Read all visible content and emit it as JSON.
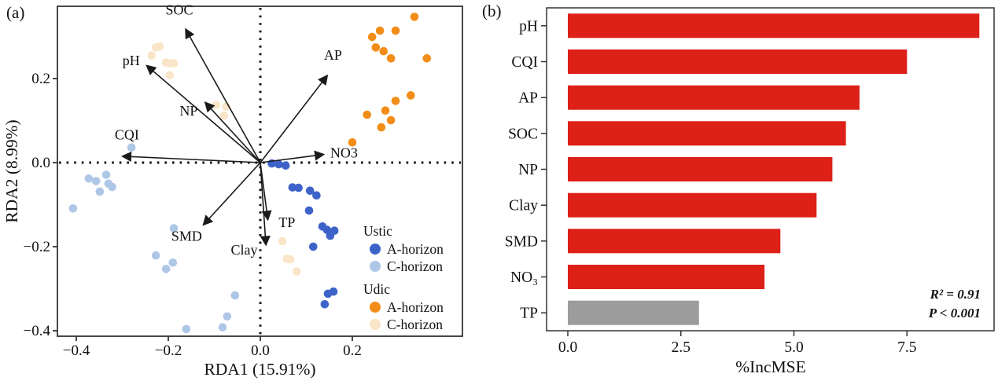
{
  "figure": {
    "panel_a_tag": "(a)",
    "panel_b_tag": "(b)"
  },
  "chart_data": [
    {
      "id": "rda-biplot",
      "type": "scatter",
      "xlabel": "RDA1 (15.91%)",
      "ylabel": "RDA2 (8.99%)",
      "xlim": [
        -0.44,
        0.44
      ],
      "ylim": [
        -0.42,
        0.38
      ],
      "xticks": {
        "values": [
          -0.4,
          -0.2,
          0.0,
          0.2
        ],
        "labels": [
          "−0.4",
          "−0.2",
          "0.0",
          "0.2"
        ]
      },
      "yticks": {
        "values": [
          0.2,
          0.0,
          -0.2,
          -0.4
        ],
        "labels": [
          "0.2",
          "0.0",
          "−0.2",
          "−0.4"
        ]
      },
      "zero_lines": "dotted",
      "arrow_color": "#1a1a1a",
      "arrows": [
        {
          "label": "SOC",
          "x": -0.161,
          "y": 0.315,
          "lx": -0.176,
          "ly": 0.352,
          "anchor": "middle"
        },
        {
          "label": "pH",
          "x": -0.245,
          "y": 0.229,
          "lx": -0.262,
          "ly": 0.232,
          "anchor": "end"
        },
        {
          "label": "NP",
          "x": -0.118,
          "y": 0.141,
          "lx": -0.136,
          "ly": 0.112,
          "anchor": "end"
        },
        {
          "label": "CQI",
          "x": -0.297,
          "y": 0.015,
          "lx": -0.29,
          "ly": 0.055,
          "anchor": "middle"
        },
        {
          "label": "NO3",
          "x": 0.135,
          "y": 0.019,
          "lx": 0.152,
          "ly": 0.012,
          "anchor": "start"
        },
        {
          "label": "AP",
          "x": 0.144,
          "y": 0.205,
          "lx": 0.158,
          "ly": 0.245,
          "anchor": "middle"
        },
        {
          "label": "SMD",
          "x": -0.122,
          "y": -0.146,
          "lx": -0.16,
          "ly": -0.186,
          "anchor": "middle"
        },
        {
          "label": "TP",
          "x": 0.016,
          "y": -0.133,
          "lx": 0.04,
          "ly": -0.153,
          "anchor": "start"
        },
        {
          "label": "Clay",
          "x": 0.012,
          "y": -0.193,
          "lx": -0.006,
          "ly": -0.219,
          "anchor": "end"
        }
      ],
      "series": [
        {
          "name": "Ustic A-horizon",
          "color": "#3D63C9",
          "points": [
            [
              0.025,
              -0.002
            ],
            [
              0.04,
              -0.004
            ],
            [
              0.055,
              -0.007
            ],
            [
              0.07,
              -0.059
            ],
            [
              0.083,
              -0.06
            ],
            [
              0.108,
              -0.067
            ],
            [
              0.122,
              -0.078
            ],
            [
              0.106,
              -0.114
            ],
            [
              0.135,
              -0.152
            ],
            [
              0.145,
              -0.16
            ],
            [
              0.161,
              -0.162
            ],
            [
              0.152,
              -0.174
            ],
            [
              0.115,
              -0.2
            ],
            [
              0.147,
              -0.312
            ],
            [
              0.159,
              -0.307
            ],
            [
              0.14,
              -0.337
            ]
          ]
        },
        {
          "name": "Ustic C-horizon",
          "color": "#AFC7E6",
          "points": [
            [
              -0.373,
              -0.038
            ],
            [
              -0.357,
              -0.044
            ],
            [
              -0.335,
              -0.029
            ],
            [
              -0.33,
              -0.05
            ],
            [
              -0.349,
              -0.069
            ],
            [
              -0.322,
              -0.058
            ],
            [
              -0.407,
              -0.109
            ],
            [
              -0.28,
              0.036
            ],
            [
              -0.188,
              -0.156
            ],
            [
              -0.227,
              -0.221
            ],
            [
              -0.205,
              -0.253
            ],
            [
              -0.19,
              -0.238
            ],
            [
              -0.055,
              -0.316
            ],
            [
              -0.072,
              -0.366
            ],
            [
              -0.082,
              -0.392
            ],
            [
              -0.161,
              -0.396
            ]
          ]
        },
        {
          "name": "Udic A-horizon",
          "color": "#F28D18",
          "points": [
            [
              0.243,
              0.299
            ],
            [
              0.26,
              0.314
            ],
            [
              0.294,
              0.314
            ],
            [
              0.335,
              0.347
            ],
            [
              0.251,
              0.274
            ],
            [
              0.268,
              0.265
            ],
            [
              0.284,
              0.248
            ],
            [
              0.362,
              0.248
            ],
            [
              0.232,
              0.114
            ],
            [
              0.272,
              0.124
            ],
            [
              0.294,
              0.147
            ],
            [
              0.327,
              0.16
            ],
            [
              0.284,
              0.101
            ],
            [
              0.263,
              0.084
            ],
            [
              0.2,
              0.048
            ]
          ]
        },
        {
          "name": "Udic C-horizon",
          "color": "#FAE5C8",
          "points": [
            [
              -0.227,
              0.274
            ],
            [
              -0.219,
              0.276
            ],
            [
              -0.236,
              0.255
            ],
            [
              -0.205,
              0.238
            ],
            [
              -0.195,
              0.236
            ],
            [
              -0.188,
              0.236
            ],
            [
              -0.197,
              0.208
            ],
            [
              -0.096,
              0.137
            ],
            [
              -0.074,
              0.133
            ],
            [
              -0.079,
              0.112
            ],
            [
              0.048,
              -0.187
            ],
            [
              0.058,
              -0.229
            ],
            [
              0.065,
              -0.23
            ],
            [
              0.079,
              -0.259
            ]
          ]
        }
      ],
      "legend": {
        "position": "inside-bottom-right",
        "groups": [
          {
            "title": "Ustic",
            "items": [
              {
                "label": "A-horizon",
                "color": "#3D63C9"
              },
              {
                "label": "C-horizon",
                "color": "#AFC7E6"
              }
            ]
          },
          {
            "title": "Udic",
            "items": [
              {
                "label": "A-horizon",
                "color": "#F28D18"
              },
              {
                "label": "C-horizon",
                "color": "#FAE5C8"
              }
            ]
          }
        ]
      }
    },
    {
      "id": "incmse-bars",
      "type": "bar",
      "orientation": "horizontal",
      "categories": [
        "pH",
        "CQI",
        "AP",
        "SOC",
        "NP",
        "Clay",
        "SMD",
        "NO₃",
        "TP"
      ],
      "values": [
        9.1,
        7.5,
        6.45,
        6.15,
        5.85,
        5.5,
        4.7,
        4.35,
        2.9
      ],
      "colors": [
        "#DD2018",
        "#DD2018",
        "#DD2018",
        "#DD2018",
        "#DD2018",
        "#DD2018",
        "#DD2018",
        "#DD2018",
        "#9C9C9C"
      ],
      "xlabel": "%IncMSE",
      "xlim": [
        0,
        9.45
      ],
      "xticks": {
        "values": [
          0,
          2.5,
          5,
          7.5
        ],
        "labels": [
          "0.0",
          "2.5",
          "5.0",
          "7.5"
        ]
      },
      "grid": false,
      "annotation": {
        "line1": "R² = 0.91",
        "line2": "P < 0.001"
      }
    }
  ]
}
